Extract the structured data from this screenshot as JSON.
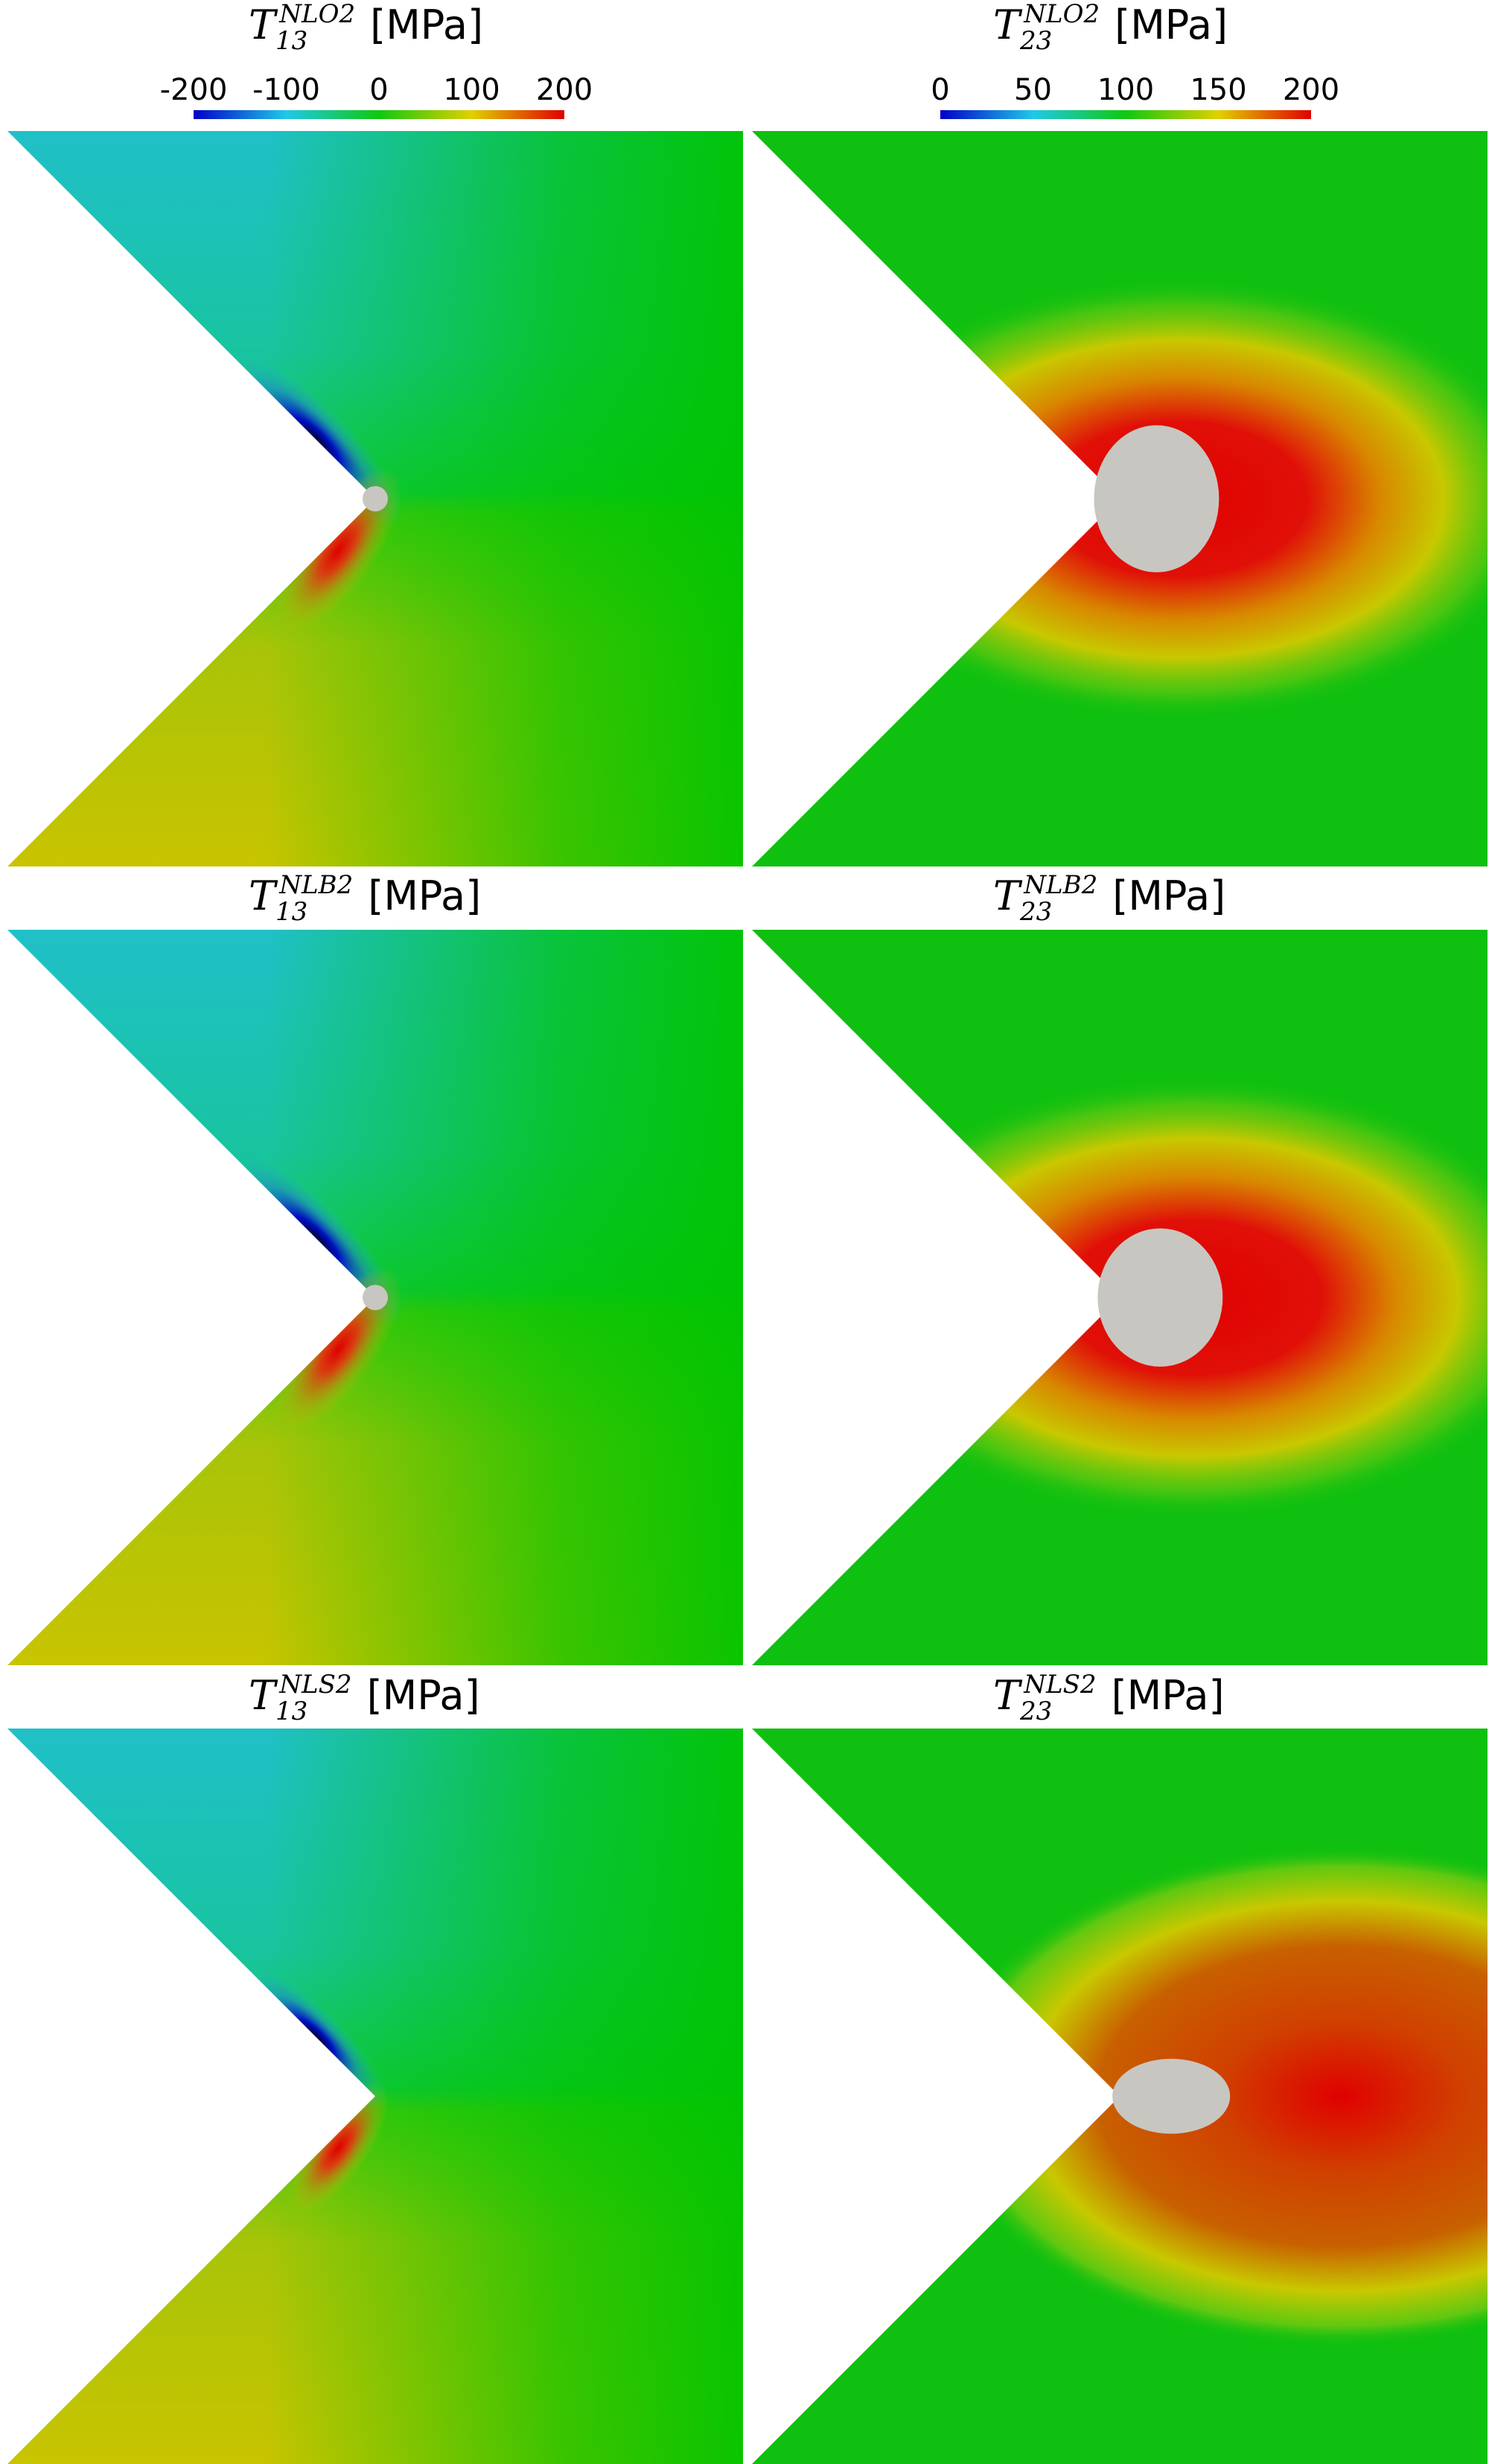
{
  "colorbars": [
    {
      "lim": [
        -200,
        200
      ],
      "ticks": [
        -200,
        -100,
        0,
        100,
        200
      ]
    },
    {
      "lim": [
        0,
        200
      ],
      "ticks": [
        0,
        50,
        100,
        150,
        200
      ]
    }
  ],
  "panels": [
    {
      "symbol": "T",
      "subscript": "13",
      "superscript": "NLO2",
      "unit": "[MPa]"
    },
    {
      "symbol": "T",
      "subscript": "23",
      "superscript": "NLO2",
      "unit": "[MPa]"
    },
    {
      "symbol": "T",
      "subscript": "13",
      "superscript": "NLB2",
      "unit": "[MPa]"
    },
    {
      "symbol": "T",
      "subscript": "23",
      "superscript": "NLB2",
      "unit": "[MPa]"
    },
    {
      "symbol": "T",
      "subscript": "13",
      "superscript": "NLS2",
      "unit": "[MPa]"
    },
    {
      "symbol": "T",
      "subscript": "23",
      "superscript": "NLS2",
      "unit": "[MPa]"
    }
  ]
}
